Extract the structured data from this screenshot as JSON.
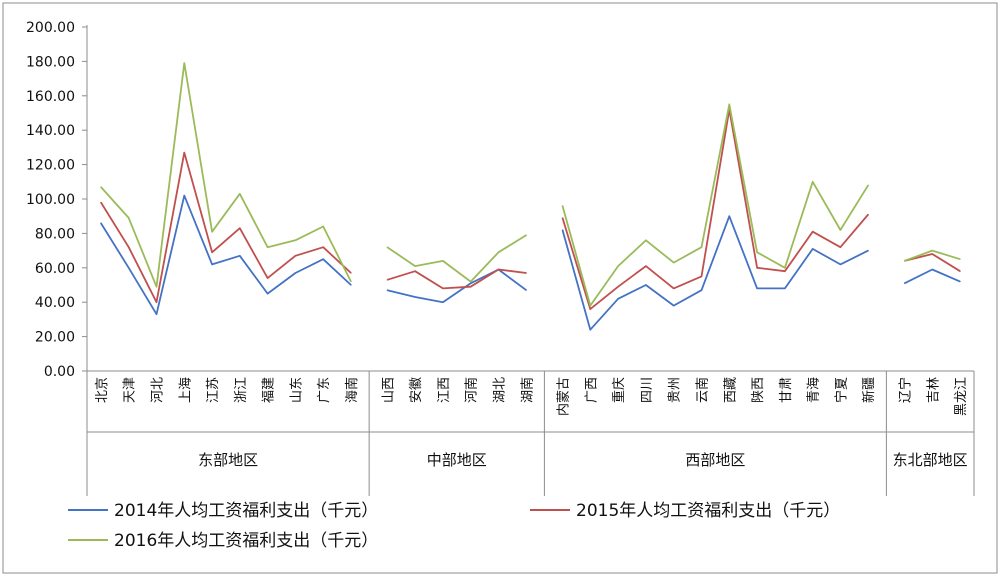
{
  "chart_data": {
    "type": "line",
    "title": "",
    "xlabel": "",
    "ylabel": "",
    "ylim": [
      0,
      200
    ],
    "ytick_step": 20,
    "ytick_format_decimals": 2,
    "grid": false,
    "legend_position": "bottom",
    "categories": [
      "北京",
      "天津",
      "河北",
      "上海",
      "江苏",
      "浙江",
      "福建",
      "山东",
      "广东",
      "海南",
      "山西",
      "安徽",
      "江西",
      "河南",
      "湖北",
      "湖南",
      "内蒙古",
      "广西",
      "重庆",
      "四川",
      "贵州",
      "云南",
      "西藏",
      "陕西",
      "甘肃",
      "青海",
      "宁夏",
      "新疆",
      "辽宁",
      "吉林",
      "黑龙江"
    ],
    "regions": [
      {
        "name": "东部地区",
        "start": 0,
        "count": 10
      },
      {
        "name": "中部地区",
        "start": 10,
        "count": 6
      },
      {
        "name": "西部地区",
        "start": 16,
        "count": 12
      },
      {
        "name": "东北部地区",
        "start": 28,
        "count": 3
      }
    ],
    "series": [
      {
        "name": "2014年人均工资福利支出（千元）",
        "color": "#4472C4",
        "values": [
          86,
          60,
          33,
          102,
          62,
          67,
          45,
          57,
          65,
          50,
          47,
          43,
          40,
          51,
          59,
          47,
          82,
          24,
          42,
          50,
          38,
          47,
          90,
          48,
          48,
          71,
          62,
          70,
          51,
          59,
          52
        ]
      },
      {
        "name": "2015年人均工资福利支出（千元）",
        "color": "#C0504D",
        "values": [
          98,
          72,
          40,
          127,
          69,
          83,
          54,
          67,
          72,
          57,
          53,
          58,
          48,
          49,
          59,
          57,
          89,
          36,
          49,
          61,
          48,
          55,
          152,
          60,
          58,
          81,
          72,
          91,
          64,
          68,
          58
        ]
      },
      {
        "name": "2016年人均工资福利支出（千元）",
        "color": "#9BBB59",
        "values": [
          107,
          89,
          49,
          179,
          81,
          103,
          72,
          76,
          84,
          52,
          72,
          61,
          64,
          52,
          69,
          79,
          96,
          38,
          61,
          76,
          63,
          72,
          155,
          69,
          60,
          110,
          82,
          108,
          64,
          70,
          65
        ]
      }
    ]
  }
}
